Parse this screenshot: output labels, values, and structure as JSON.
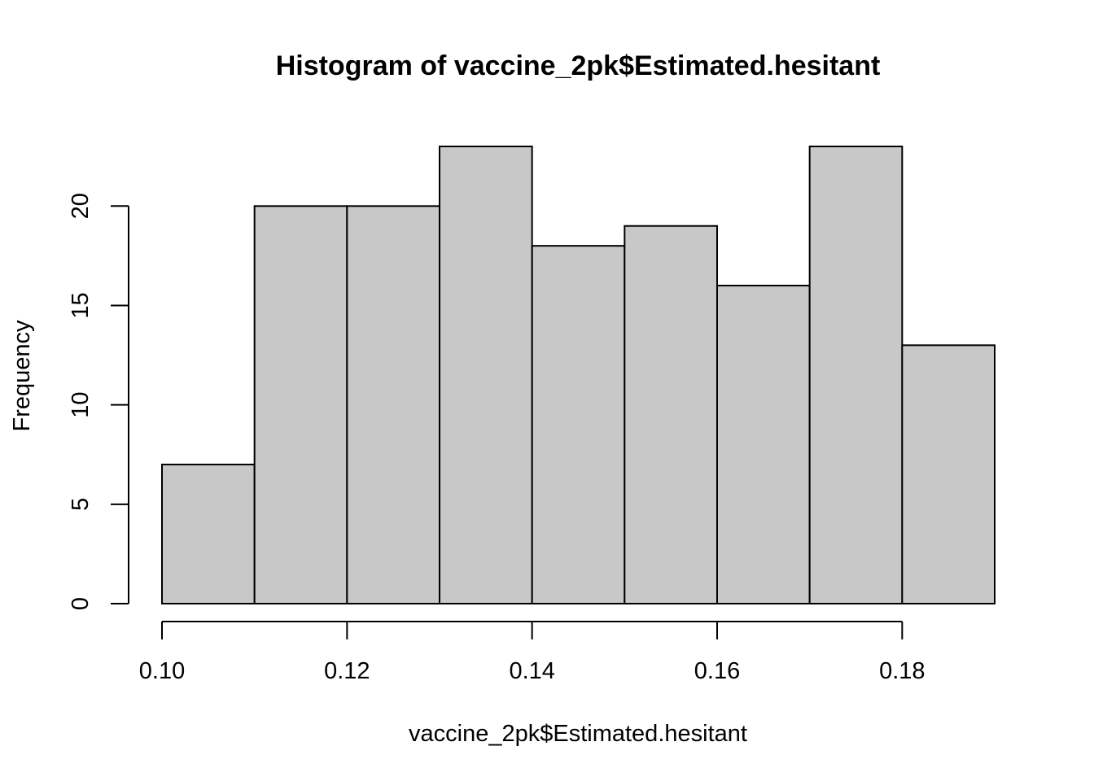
{
  "chart_data": {
    "type": "bar",
    "title": "Histogram of vaccine_2pk$Estimated.hesitant",
    "xlabel": "vaccine_2pk$Estimated.hesitant",
    "ylabel": "Frequency",
    "bins": [
      {
        "from": 0.1,
        "to": 0.11,
        "count": 7
      },
      {
        "from": 0.11,
        "to": 0.12,
        "count": 20
      },
      {
        "from": 0.12,
        "to": 0.13,
        "count": 20
      },
      {
        "from": 0.13,
        "to": 0.14,
        "count": 23
      },
      {
        "from": 0.14,
        "to": 0.15,
        "count": 18
      },
      {
        "from": 0.15,
        "to": 0.16,
        "count": 19
      },
      {
        "from": 0.16,
        "to": 0.17,
        "count": 16
      },
      {
        "from": 0.17,
        "to": 0.18,
        "count": 23
      },
      {
        "from": 0.18,
        "to": 0.19,
        "count": 13
      }
    ],
    "xlim": [
      0.1,
      0.19
    ],
    "ylim": [
      0,
      23
    ],
    "x_ticks": [
      0.1,
      0.12,
      0.14,
      0.16,
      0.18
    ],
    "x_tick_labels": [
      "0.10",
      "0.12",
      "0.14",
      "0.16",
      "0.18"
    ],
    "y_ticks": [
      0,
      5,
      10,
      15,
      20
    ],
    "y_tick_labels": [
      "0",
      "5",
      "10",
      "15",
      "20"
    ],
    "grid": false,
    "colors": {
      "bar_fill": "#c8c8c8",
      "bar_stroke": "#000000"
    }
  }
}
